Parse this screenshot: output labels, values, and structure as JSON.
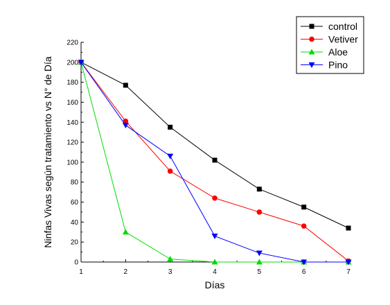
{
  "chart_data": {
    "type": "line",
    "title": "",
    "xlabel": "Días",
    "ylabel": "Ninfas Vivas según tratamiento vs N° de Día",
    "x": [
      1,
      2,
      3,
      4,
      5,
      6,
      7
    ],
    "xlim": [
      1,
      7
    ],
    "ylim": [
      0,
      220
    ],
    "xticks": [
      1,
      2,
      3,
      4,
      5,
      6,
      7
    ],
    "yticks": [
      0,
      20,
      40,
      60,
      80,
      100,
      120,
      140,
      160,
      180,
      200,
      220
    ],
    "grid": false,
    "legend_position": "top-right",
    "series": [
      {
        "name": "control",
        "color": "#000000",
        "marker": "square",
        "values": [
          200,
          177,
          135,
          102,
          73,
          55,
          34
        ]
      },
      {
        "name": "Vetiver",
        "color": "#ff0000",
        "marker": "circle",
        "values": [
          200,
          141,
          91,
          64,
          50,
          36,
          1
        ]
      },
      {
        "name": "Aloe",
        "color": "#00dd00",
        "marker": "triangle-up",
        "values": [
          200,
          30,
          3,
          0,
          0,
          0,
          0
        ]
      },
      {
        "name": "Pino",
        "color": "#0000ff",
        "marker": "triangle-down",
        "values": [
          200,
          137,
          106,
          26,
          9,
          0,
          0
        ]
      }
    ]
  }
}
